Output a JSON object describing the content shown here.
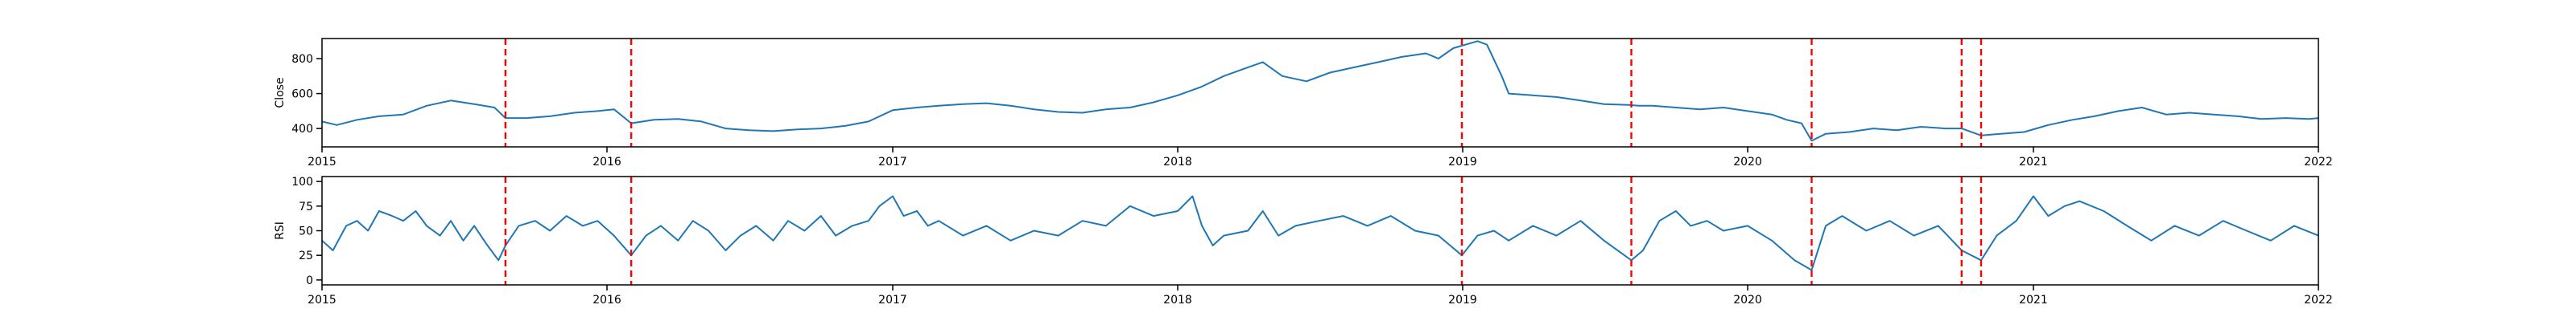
{
  "chart_data": [
    {
      "type": "line",
      "title": "",
      "xlabel": "",
      "ylabel": "Close",
      "xlim": [
        "2015-01-01",
        "2022-01-01"
      ],
      "ylim": [
        295,
        915
      ],
      "x_ticks": [
        "2015",
        "2016",
        "2017",
        "2018",
        "2019",
        "2020",
        "2021",
        "2022"
      ],
      "y_ticks": [
        400,
        600,
        800
      ],
      "grid": false,
      "legend": "none",
      "line_color": "#1f77b4",
      "vline_color": "#ff0000",
      "vlines": [
        "2015-08-24",
        "2016-02-01",
        "2018-12-31",
        "2019-08-05",
        "2020-03-23",
        "2020-10-01",
        "2020-10-26"
      ],
      "series": [
        {
          "values": [
            [
              "2015-01-01",
              440
            ],
            [
              "2015-01-20",
              420
            ],
            [
              "2015-02-15",
              450
            ],
            [
              "2015-03-15",
              470
            ],
            [
              "2015-04-15",
              480
            ],
            [
              "2015-05-15",
              530
            ],
            [
              "2015-06-15",
              560
            ],
            [
              "2015-07-15",
              540
            ],
            [
              "2015-08-10",
              520
            ],
            [
              "2015-08-24",
              460
            ],
            [
              "2015-09-20",
              460
            ],
            [
              "2015-10-20",
              470
            ],
            [
              "2015-11-20",
              490
            ],
            [
              "2015-12-20",
              500
            ],
            [
              "2016-01-10",
              510
            ],
            [
              "2016-02-01",
              430
            ],
            [
              "2016-03-01",
              450
            ],
            [
              "2016-04-01",
              455
            ],
            [
              "2016-05-01",
              440
            ],
            [
              "2016-06-01",
              400
            ],
            [
              "2016-07-01",
              390
            ],
            [
              "2016-08-01",
              385
            ],
            [
              "2016-09-01",
              395
            ],
            [
              "2016-10-01",
              400
            ],
            [
              "2016-11-01",
              415
            ],
            [
              "2016-12-01",
              440
            ],
            [
              "2017-01-01",
              505
            ],
            [
              "2017-02-01",
              520
            ],
            [
              "2017-03-01",
              530
            ],
            [
              "2017-04-01",
              540
            ],
            [
              "2017-05-01",
              545
            ],
            [
              "2017-06-01",
              530
            ],
            [
              "2017-07-01",
              510
            ],
            [
              "2017-08-01",
              495
            ],
            [
              "2017-09-01",
              490
            ],
            [
              "2017-10-01",
              510
            ],
            [
              "2017-11-01",
              520
            ],
            [
              "2017-12-01",
              550
            ],
            [
              "2018-01-01",
              590
            ],
            [
              "2018-02-01",
              640
            ],
            [
              "2018-03-01",
              700
            ],
            [
              "2018-04-01",
              750
            ],
            [
              "2018-04-20",
              780
            ],
            [
              "2018-05-15",
              700
            ],
            [
              "2018-06-15",
              670
            ],
            [
              "2018-07-15",
              720
            ],
            [
              "2018-08-15",
              750
            ],
            [
              "2018-09-15",
              780
            ],
            [
              "2018-10-15",
              810
            ],
            [
              "2018-11-15",
              830
            ],
            [
              "2018-12-01",
              800
            ],
            [
              "2018-12-20",
              860
            ],
            [
              "2019-01-20",
              900
            ],
            [
              "2019-02-01",
              880
            ],
            [
              "2019-02-20",
              700
            ],
            [
              "2019-03-01",
              600
            ],
            [
              "2019-04-01",
              590
            ],
            [
              "2019-05-01",
              580
            ],
            [
              "2019-06-01",
              560
            ],
            [
              "2019-07-01",
              540
            ],
            [
              "2019-08-01",
              535
            ],
            [
              "2019-08-15",
              530
            ],
            [
              "2019-09-01",
              530
            ],
            [
              "2019-10-01",
              520
            ],
            [
              "2019-11-01",
              510
            ],
            [
              "2019-12-01",
              520
            ],
            [
              "2020-01-01",
              500
            ],
            [
              "2020-02-01",
              480
            ],
            [
              "2020-02-20",
              450
            ],
            [
              "2020-03-10",
              430
            ],
            [
              "2020-03-23",
              330
            ],
            [
              "2020-04-10",
              370
            ],
            [
              "2020-05-10",
              380
            ],
            [
              "2020-06-10",
              400
            ],
            [
              "2020-07-10",
              390
            ],
            [
              "2020-08-10",
              410
            ],
            [
              "2020-09-10",
              400
            ],
            [
              "2020-10-01",
              400
            ],
            [
              "2020-10-26",
              360
            ],
            [
              "2020-11-20",
              370
            ],
            [
              "2020-12-20",
              380
            ],
            [
              "2021-01-20",
              420
            ],
            [
              "2021-02-20",
              450
            ],
            [
              "2021-03-20",
              470
            ],
            [
              "2021-04-20",
              500
            ],
            [
              "2021-05-20",
              520
            ],
            [
              "2021-06-20",
              480
            ],
            [
              "2021-07-20",
              490
            ],
            [
              "2021-08-20",
              480
            ],
            [
              "2021-09-20",
              470
            ],
            [
              "2021-10-20",
              455
            ],
            [
              "2021-11-20",
              460
            ],
            [
              "2021-12-20",
              455
            ],
            [
              "2022-01-01",
              460
            ]
          ]
        }
      ]
    },
    {
      "type": "line",
      "title": "",
      "xlabel": "",
      "ylabel": "RSI",
      "xlim": [
        "2015-01-01",
        "2022-01-01"
      ],
      "ylim": [
        -5,
        105
      ],
      "x_ticks": [
        "2015",
        "2016",
        "2017",
        "2018",
        "2019",
        "2020",
        "2021",
        "2022"
      ],
      "y_ticks": [
        0,
        25,
        50,
        75,
        100
      ],
      "grid": false,
      "legend": "none",
      "line_color": "#1f77b4",
      "vline_color": "#ff0000",
      "vlines": [
        "2015-08-24",
        "2016-02-01",
        "2018-12-31",
        "2019-08-05",
        "2020-03-23",
        "2020-10-01",
        "2020-10-26"
      ],
      "series": [
        {
          "values": [
            [
              "2015-01-01",
              40
            ],
            [
              "2015-01-15",
              30
            ],
            [
              "2015-02-01",
              55
            ],
            [
              "2015-02-15",
              60
            ],
            [
              "2015-03-01",
              50
            ],
            [
              "2015-03-15",
              70
            ],
            [
              "2015-04-01",
              65
            ],
            [
              "2015-04-15",
              60
            ],
            [
              "2015-05-01",
              70
            ],
            [
              "2015-05-15",
              55
            ],
            [
              "2015-06-01",
              45
            ],
            [
              "2015-06-15",
              60
            ],
            [
              "2015-07-01",
              40
            ],
            [
              "2015-07-15",
              55
            ],
            [
              "2015-08-01",
              35
            ],
            [
              "2015-08-15",
              20
            ],
            [
              "2015-08-24",
              35
            ],
            [
              "2015-09-10",
              55
            ],
            [
              "2015-10-01",
              60
            ],
            [
              "2015-10-20",
              50
            ],
            [
              "2015-11-10",
              65
            ],
            [
              "2015-12-01",
              55
            ],
            [
              "2015-12-20",
              60
            ],
            [
              "2016-01-10",
              45
            ],
            [
              "2016-02-01",
              25
            ],
            [
              "2016-02-20",
              45
            ],
            [
              "2016-03-10",
              55
            ],
            [
              "2016-04-01",
              40
            ],
            [
              "2016-04-20",
              60
            ],
            [
              "2016-05-10",
              50
            ],
            [
              "2016-06-01",
              30
            ],
            [
              "2016-06-20",
              45
            ],
            [
              "2016-07-10",
              55
            ],
            [
              "2016-08-01",
              40
            ],
            [
              "2016-08-20",
              60
            ],
            [
              "2016-09-10",
              50
            ],
            [
              "2016-10-01",
              65
            ],
            [
              "2016-10-20",
              45
            ],
            [
              "2016-11-10",
              55
            ],
            [
              "2016-12-01",
              60
            ],
            [
              "2016-12-15",
              75
            ],
            [
              "2017-01-01",
              85
            ],
            [
              "2017-01-15",
              65
            ],
            [
              "2017-02-01",
              70
            ],
            [
              "2017-02-15",
              55
            ],
            [
              "2017-03-01",
              60
            ],
            [
              "2017-04-01",
              45
            ],
            [
              "2017-05-01",
              55
            ],
            [
              "2017-06-01",
              40
            ],
            [
              "2017-07-01",
              50
            ],
            [
              "2017-08-01",
              45
            ],
            [
              "2017-09-01",
              60
            ],
            [
              "2017-10-01",
              55
            ],
            [
              "2017-11-01",
              75
            ],
            [
              "2017-12-01",
              65
            ],
            [
              "2018-01-01",
              70
            ],
            [
              "2018-01-20",
              85
            ],
            [
              "2018-02-01",
              55
            ],
            [
              "2018-02-15",
              35
            ],
            [
              "2018-03-01",
              45
            ],
            [
              "2018-04-01",
              50
            ],
            [
              "2018-04-20",
              70
            ],
            [
              "2018-05-10",
              45
            ],
            [
              "2018-06-01",
              55
            ],
            [
              "2018-07-01",
              60
            ],
            [
              "2018-08-01",
              65
            ],
            [
              "2018-09-01",
              55
            ],
            [
              "2018-10-01",
              65
            ],
            [
              "2018-11-01",
              50
            ],
            [
              "2018-12-01",
              45
            ],
            [
              "2018-12-31",
              25
            ],
            [
              "2019-01-20",
              45
            ],
            [
              "2019-02-10",
              50
            ],
            [
              "2019-03-01",
              40
            ],
            [
              "2019-04-01",
              55
            ],
            [
              "2019-05-01",
              45
            ],
            [
              "2019-06-01",
              60
            ],
            [
              "2019-07-01",
              40
            ],
            [
              "2019-08-05",
              20
            ],
            [
              "2019-08-20",
              30
            ],
            [
              "2019-09-10",
              60
            ],
            [
              "2019-10-01",
              70
            ],
            [
              "2019-10-20",
              55
            ],
            [
              "2019-11-10",
              60
            ],
            [
              "2019-12-01",
              50
            ],
            [
              "2020-01-01",
              55
            ],
            [
              "2020-02-01",
              40
            ],
            [
              "2020-03-01",
              20
            ],
            [
              "2020-03-23",
              10
            ],
            [
              "2020-04-10",
              55
            ],
            [
              "2020-05-01",
              65
            ],
            [
              "2020-06-01",
              50
            ],
            [
              "2020-07-01",
              60
            ],
            [
              "2020-08-01",
              45
            ],
            [
              "2020-09-01",
              55
            ],
            [
              "2020-10-01",
              30
            ],
            [
              "2020-10-26",
              20
            ],
            [
              "2020-11-15",
              45
            ],
            [
              "2020-12-10",
              60
            ],
            [
              "2021-01-01",
              85
            ],
            [
              "2021-01-20",
              65
            ],
            [
              "2021-02-10",
              75
            ],
            [
              "2021-03-01",
              80
            ],
            [
              "2021-04-01",
              70
            ],
            [
              "2021-05-01",
              55
            ],
            [
              "2021-06-01",
              40
            ],
            [
              "2021-07-01",
              55
            ],
            [
              "2021-08-01",
              45
            ],
            [
              "2021-09-01",
              60
            ],
            [
              "2021-10-01",
              50
            ],
            [
              "2021-11-01",
              40
            ],
            [
              "2021-12-01",
              55
            ],
            [
              "2022-01-01",
              45
            ]
          ]
        }
      ]
    }
  ]
}
